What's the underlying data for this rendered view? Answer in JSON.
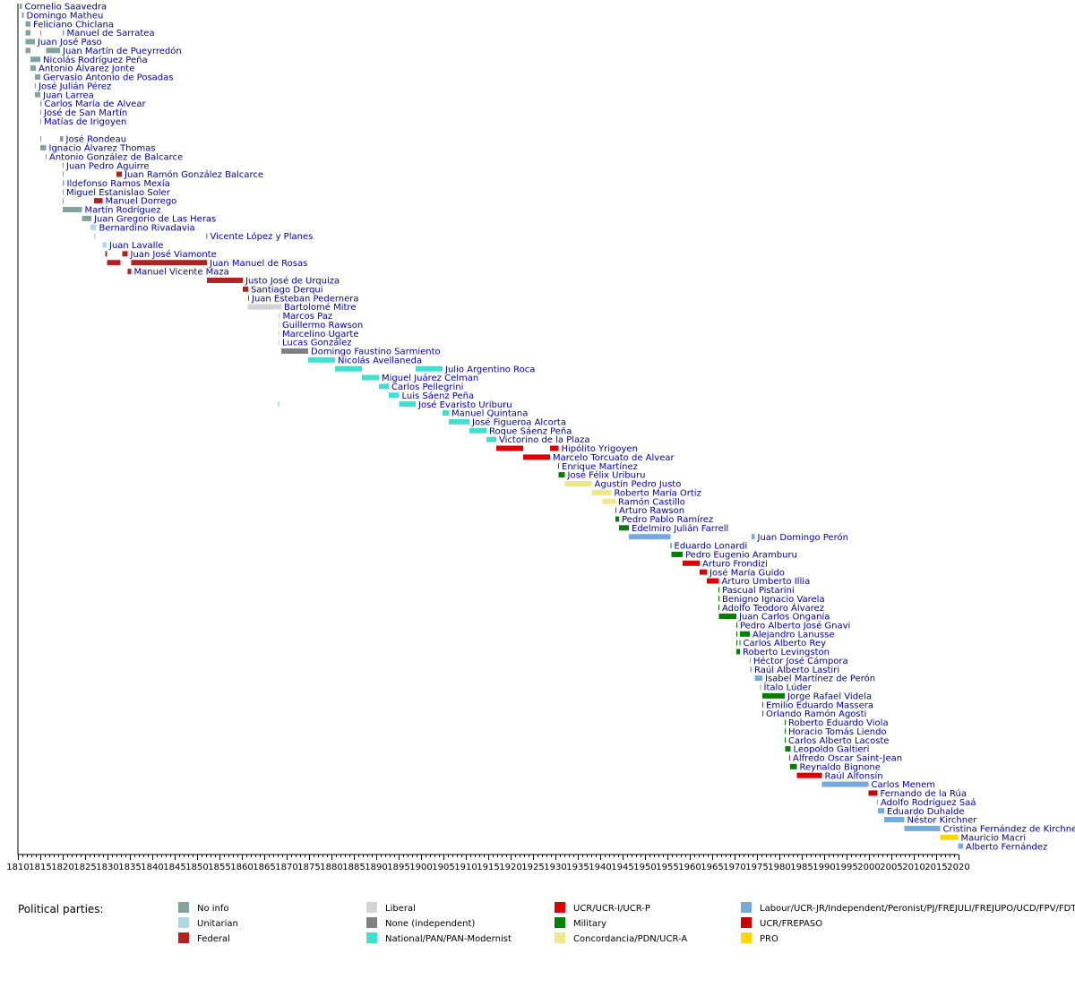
{
  "chart_data": {
    "type": "timeline",
    "title": "",
    "xlabel": "",
    "ylabel": "",
    "xlim": [
      1810,
      2020
    ],
    "xticks": [
      1810,
      1815,
      1820,
      1825,
      1830,
      1835,
      1840,
      1845,
      1850,
      1855,
      1860,
      1865,
      1870,
      1875,
      1880,
      1885,
      1890,
      1895,
      1900,
      1905,
      1910,
      1915,
      1920,
      1925,
      1930,
      1935,
      1940,
      1945,
      1950,
      1955,
      1960,
      1965,
      1970,
      1975,
      1980,
      1985,
      1990,
      1995,
      2000,
      2005,
      2010,
      2015,
      2020
    ],
    "legend_title": "Political parties:",
    "legend_placement": "bottom",
    "parties": [
      {
        "key": "noinfo",
        "label": "No info",
        "color": "#7fa3a0"
      },
      {
        "key": "unitarian",
        "label": "Unitarian",
        "color": "#add8e6"
      },
      {
        "key": "federal",
        "label": "Federal",
        "color": "#b22222"
      },
      {
        "key": "liberal",
        "label": "Liberal",
        "color": "#d3d3d3"
      },
      {
        "key": "independent",
        "label": "None (independent)",
        "color": "#808080"
      },
      {
        "key": "national",
        "label": "National/PAN/PAN-Modernist",
        "color": "#40e0d0"
      },
      {
        "key": "ucr",
        "label": "UCR/UCR-I/UCR-P",
        "color": "#dd0000"
      },
      {
        "key": "military",
        "label": "Military",
        "color": "#008000"
      },
      {
        "key": "concordancia",
        "label": "Concordancia/PDN/UCR-A",
        "color": "#f0e68c"
      },
      {
        "key": "labour",
        "label": "Labour/UCR-JR/Independent/Peronist/PJ/FREJULI/FREJUPO/UCD/FPV/FDT",
        "color": "#75aadb"
      },
      {
        "key": "frepaso",
        "label": "UCR/FREPASO",
        "color": "#cc0000"
      },
      {
        "key": "pro",
        "label": "PRO",
        "color": "#ffd700"
      }
    ],
    "rows": [
      {
        "name": "Cornelio Saavedra",
        "terms": [
          [
            1810.4,
            1810.9,
            "noinfo"
          ]
        ]
      },
      {
        "name": "Domingo Matheu",
        "terms": [
          [
            1810.9,
            1811.3,
            "noinfo"
          ]
        ]
      },
      {
        "name": "Feliciano Chiclana",
        "terms": [
          [
            1811.7,
            1812.8,
            "noinfo"
          ]
        ]
      },
      {
        "name": "Manuel de Sarratea",
        "terms": [
          [
            1811.7,
            1812.8,
            "noinfo"
          ],
          [
            1815.0,
            1815.2,
            "noinfo"
          ],
          [
            1820.0,
            1820.3,
            "noinfo"
          ]
        ]
      },
      {
        "name": "Juan José Paso",
        "terms": [
          [
            1811.7,
            1813.8,
            "noinfo"
          ]
        ]
      },
      {
        "name": "Juan Martín de Pueyrredón",
        "terms": [
          [
            1811.7,
            1812.8,
            "noinfo"
          ],
          [
            1816.3,
            1819.4,
            "noinfo"
          ]
        ]
      },
      {
        "name": "Nicolás Rodríguez Peña",
        "terms": [
          [
            1812.8,
            1815.0,
            "noinfo"
          ]
        ]
      },
      {
        "name": "Antonio Álvarez Jonte",
        "terms": [
          [
            1812.8,
            1814.0,
            "noinfo"
          ]
        ]
      },
      {
        "name": "Gervasio Antonio de Posadas",
        "terms": [
          [
            1813.8,
            1815.0,
            "noinfo"
          ]
        ]
      },
      {
        "name": "José Julián Pérez",
        "terms": [
          [
            1813.8,
            1814.0,
            "noinfo"
          ]
        ]
      },
      {
        "name": "Juan Larrea",
        "terms": [
          [
            1813.8,
            1815.0,
            "noinfo"
          ]
        ]
      },
      {
        "name": "Carlos María de Alvear",
        "terms": [
          [
            1815.0,
            1815.3,
            "noinfo"
          ]
        ]
      },
      {
        "name": "José de San Martín",
        "terms": [
          [
            1815.0,
            1815.2,
            "noinfo"
          ]
        ]
      },
      {
        "name": "Matías de Irigoyen",
        "terms": [
          [
            1815.0,
            1815.2,
            "noinfo"
          ]
        ]
      },
      {
        "name": "",
        "terms": []
      },
      {
        "name": "José Rondeau",
        "terms": [
          [
            1815.0,
            1815.2,
            "noinfo"
          ],
          [
            1819.4,
            1820.1,
            "noinfo"
          ]
        ]
      },
      {
        "name": "Ignacio Álvarez Thomas",
        "terms": [
          [
            1815.0,
            1816.3,
            "noinfo"
          ]
        ]
      },
      {
        "name": "Antonio González de Balcarce",
        "terms": [
          [
            1816.2,
            1816.4,
            "noinfo"
          ]
        ]
      },
      {
        "name": "Juan Pedro Aguirre",
        "terms": [
          [
            1820.0,
            1820.2,
            "noinfo"
          ]
        ]
      },
      {
        "name": "Juan Ramón González Balcarce",
        "terms": [
          [
            1820.0,
            1820.2,
            "noinfo"
          ],
          [
            1832.0,
            1833.2,
            "federal"
          ]
        ]
      },
      {
        "name": "Ildefonso Ramos Mexía",
        "terms": [
          [
            1820.0,
            1820.3,
            "noinfo"
          ]
        ]
      },
      {
        "name": "Miguel Estanislao Soler",
        "terms": [
          [
            1820.0,
            1820.2,
            "noinfo"
          ]
        ]
      },
      {
        "name": "Manuel Dorrego",
        "terms": [
          [
            1820.0,
            1820.2,
            "noinfo"
          ],
          [
            1827.0,
            1828.9,
            "federal"
          ]
        ]
      },
      {
        "name": "Martín Rodríguez",
        "terms": [
          [
            1820.0,
            1824.3,
            "noinfo"
          ]
        ]
      },
      {
        "name": "Juan Gregorio de Las Heras",
        "terms": [
          [
            1824.3,
            1826.4,
            "noinfo"
          ]
        ]
      },
      {
        "name": "Bernardino Rivadavia",
        "terms": [
          [
            1826.2,
            1827.5,
            "unitarian"
          ]
        ]
      },
      {
        "name": "Vicente López y Planes",
        "terms": [
          [
            1827.0,
            1827.3,
            "unitarian"
          ],
          [
            1852.0,
            1852.3,
            "noinfo"
          ]
        ]
      },
      {
        "name": "Juan Lavalle",
        "terms": [
          [
            1828.9,
            1829.8,
            "unitarian"
          ]
        ]
      },
      {
        "name": "Juan José Viamonte",
        "terms": [
          [
            1829.5,
            1829.9,
            "federal"
          ],
          [
            1833.3,
            1834.5,
            "federal"
          ]
        ]
      },
      {
        "name": "Juan Manuel de Rosas",
        "terms": [
          [
            1829.9,
            1832.9,
            "federal"
          ],
          [
            1835.3,
            1852.2,
            "federal"
          ]
        ]
      },
      {
        "name": "Manuel Vicente Maza",
        "terms": [
          [
            1834.5,
            1835.3,
            "federal"
          ]
        ]
      },
      {
        "name": "Justo José de Urquiza",
        "terms": [
          [
            1852.2,
            1860.2,
            "federal"
          ]
        ]
      },
      {
        "name": "Santiago Derqui",
        "terms": [
          [
            1860.2,
            1861.4,
            "federal"
          ]
        ]
      },
      {
        "name": "Juan Esteban Pedernera",
        "terms": [
          [
            1861.4,
            1861.6,
            "federal"
          ]
        ]
      },
      {
        "name": "Bartolomé Mitre",
        "terms": [
          [
            1861.3,
            1868.8,
            "liberal"
          ]
        ]
      },
      {
        "name": "Marcos Paz",
        "terms": [
          [
            1868.2,
            1868.5,
            "liberal"
          ]
        ]
      },
      {
        "name": "Guillermo Rawson",
        "terms": [
          [
            1868.2,
            1868.4,
            "liberal"
          ]
        ]
      },
      {
        "name": "Marcelino Ugarte",
        "terms": [
          [
            1868.2,
            1868.4,
            "liberal"
          ]
        ]
      },
      {
        "name": "Lucas González",
        "terms": [
          [
            1868.2,
            1868.4,
            "liberal"
          ]
        ]
      },
      {
        "name": "Domingo Faustino Sarmiento",
        "terms": [
          [
            1868.8,
            1874.8,
            "independent"
          ]
        ]
      },
      {
        "name": "Nicolás Avellaneda",
        "terms": [
          [
            1874.8,
            1880.8,
            "national"
          ]
        ]
      },
      {
        "name": "Julio Argentino Roca",
        "terms": [
          [
            1880.8,
            1886.8,
            "national"
          ],
          [
            1898.8,
            1904.8,
            "national"
          ]
        ]
      },
      {
        "name": "Miguel Juárez Celman",
        "terms": [
          [
            1886.8,
            1890.6,
            "national"
          ]
        ]
      },
      {
        "name": "Carlos Pellegrini",
        "terms": [
          [
            1890.6,
            1892.8,
            "national"
          ]
        ]
      },
      {
        "name": "Luis Sáenz Peña",
        "terms": [
          [
            1892.8,
            1895.1,
            "national"
          ]
        ]
      },
      {
        "name": "José Evaristo Uriburu",
        "terms": [
          [
            1868.1,
            1868.3,
            "national"
          ],
          [
            1895.1,
            1898.8,
            "national"
          ]
        ]
      },
      {
        "name": "Manuel Quintana",
        "terms": [
          [
            1904.8,
            1906.2,
            "national"
          ]
        ]
      },
      {
        "name": "José Figueroa Alcorta",
        "terms": [
          [
            1906.2,
            1910.8,
            "national"
          ]
        ]
      },
      {
        "name": "Roque Sáenz Peña",
        "terms": [
          [
            1910.8,
            1914.6,
            "national"
          ]
        ]
      },
      {
        "name": "Victorino de la Plaza",
        "terms": [
          [
            1914.6,
            1916.8,
            "national"
          ]
        ]
      },
      {
        "name": "Hipólito Yrigoyen",
        "terms": [
          [
            1916.8,
            1922.8,
            "ucr"
          ],
          [
            1928.8,
            1930.7,
            "ucr"
          ]
        ]
      },
      {
        "name": "Marcelo Torcuato de Alvear",
        "terms": [
          [
            1922.8,
            1928.8,
            "ucr"
          ]
        ]
      },
      {
        "name": "Enrique Martínez",
        "terms": [
          [
            1930.6,
            1930.8,
            "ucr"
          ]
        ]
      },
      {
        "name": "José Félix Uriburu",
        "terms": [
          [
            1930.7,
            1932.1,
            "military"
          ]
        ]
      },
      {
        "name": "Agustín Pedro Justo",
        "terms": [
          [
            1932.1,
            1938.1,
            "concordancia"
          ]
        ]
      },
      {
        "name": "Roberto María Ortiz",
        "terms": [
          [
            1938.1,
            1942.5,
            "concordancia"
          ]
        ]
      },
      {
        "name": "Ramón Castillo",
        "terms": [
          [
            1940.5,
            1943.4,
            "concordancia"
          ]
        ]
      },
      {
        "name": "Arturo Rawson",
        "terms": [
          [
            1943.4,
            1943.6,
            "military"
          ]
        ]
      },
      {
        "name": "Pedro Pablo Ramírez",
        "terms": [
          [
            1943.4,
            1944.2,
            "military"
          ]
        ]
      },
      {
        "name": "Edelmiro Julián Farrell",
        "terms": [
          [
            1944.2,
            1946.4,
            "military"
          ]
        ]
      },
      {
        "name": "Juan Domingo Perón",
        "terms": [
          [
            1946.4,
            1955.7,
            "labour"
          ],
          [
            1973.8,
            1974.5,
            "labour"
          ]
        ]
      },
      {
        "name": "Eduardo Lonardi",
        "terms": [
          [
            1955.7,
            1955.9,
            "military"
          ]
        ]
      },
      {
        "name": "Pedro Eugenio Aramburu",
        "terms": [
          [
            1955.9,
            1958.4,
            "military"
          ]
        ]
      },
      {
        "name": "Arturo Frondizi",
        "terms": [
          [
            1958.4,
            1962.2,
            "ucr"
          ]
        ]
      },
      {
        "name": "José María Guido",
        "terms": [
          [
            1962.2,
            1963.8,
            "ucr"
          ]
        ]
      },
      {
        "name": "Arturo Umberto Illia",
        "terms": [
          [
            1963.8,
            1966.5,
            "ucr"
          ]
        ]
      },
      {
        "name": "Pascual Pistarini",
        "terms": [
          [
            1966.4,
            1966.6,
            "military"
          ]
        ]
      },
      {
        "name": "Benigno Ignacio Varela",
        "terms": [
          [
            1966.4,
            1966.6,
            "military"
          ]
        ]
      },
      {
        "name": "Adolfo Teodoro Álvarez",
        "terms": [
          [
            1966.4,
            1966.6,
            "military"
          ]
        ]
      },
      {
        "name": "Juan Carlos Onganía",
        "terms": [
          [
            1966.5,
            1970.4,
            "military"
          ]
        ]
      },
      {
        "name": "Pedro Alberto José Gnavi",
        "terms": [
          [
            1970.4,
            1970.6,
            "military"
          ]
        ]
      },
      {
        "name": "Alejandro Lanusse",
        "terms": [
          [
            1970.4,
            1970.6,
            "military"
          ],
          [
            1971.2,
            1973.4,
            "military"
          ]
        ]
      },
      {
        "name": "Carlos Alberto Rey",
        "terms": [
          [
            1970.4,
            1970.6,
            "military"
          ],
          [
            1971.1,
            1971.3,
            "military"
          ]
        ]
      },
      {
        "name": "Roberto Levingston",
        "terms": [
          [
            1970.4,
            1971.2,
            "military"
          ]
        ]
      },
      {
        "name": "Héctor José Cámpora",
        "terms": [
          [
            1973.4,
            1973.6,
            "labour"
          ]
        ]
      },
      {
        "name": "Raúl Alberto Lastiri",
        "terms": [
          [
            1973.5,
            1973.8,
            "labour"
          ]
        ]
      },
      {
        "name": "Isabel Martínez de Perón",
        "terms": [
          [
            1974.5,
            1976.2,
            "labour"
          ]
        ]
      },
      {
        "name": "Ítalo Lúder",
        "terms": [
          [
            1975.7,
            1975.9,
            "labour"
          ]
        ]
      },
      {
        "name": "Jorge Rafael Videla",
        "terms": [
          [
            1976.2,
            1981.2,
            "military"
          ]
        ]
      },
      {
        "name": "Emilio Eduardo Massera",
        "terms": [
          [
            1976.2,
            1976.4,
            "military"
          ]
        ]
      },
      {
        "name": "Orlando Ramón Agosti",
        "terms": [
          [
            1976.2,
            1976.4,
            "military"
          ]
        ]
      },
      {
        "name": "Roberto Eduardo Viola",
        "terms": [
          [
            1981.2,
            1981.4,
            "military"
          ]
        ]
      },
      {
        "name": "Horacio Tomás Liendo",
        "terms": [
          [
            1981.2,
            1981.4,
            "military"
          ]
        ]
      },
      {
        "name": "Carlos Alberto Lacoste",
        "terms": [
          [
            1981.2,
            1981.4,
            "military"
          ]
        ]
      },
      {
        "name": "Leopoldo Galtieri",
        "terms": [
          [
            1981.3,
            1982.5,
            "military"
          ]
        ]
      },
      {
        "name": "Alfredo Oscar Saint-Jean",
        "terms": [
          [
            1982.2,
            1982.4,
            "military"
          ]
        ]
      },
      {
        "name": "Reynaldo Bignone",
        "terms": [
          [
            1982.4,
            1983.9,
            "military"
          ]
        ]
      },
      {
        "name": "Raúl Alfonsín",
        "terms": [
          [
            1983.9,
            1989.5,
            "ucr"
          ]
        ]
      },
      {
        "name": "Carlos Menem",
        "terms": [
          [
            1989.5,
            1999.9,
            "labour"
          ]
        ]
      },
      {
        "name": "Fernando de la Rúa",
        "terms": [
          [
            1999.9,
            2001.9,
            "frepaso"
          ]
        ]
      },
      {
        "name": "Adolfo Rodríguez Saá",
        "terms": [
          [
            2001.8,
            2002.0,
            "labour"
          ]
        ]
      },
      {
        "name": "Eduardo Duhalde",
        "terms": [
          [
            2002.0,
            2003.4,
            "labour"
          ]
        ]
      },
      {
        "name": "Néstor Kirchner",
        "terms": [
          [
            2003.4,
            2007.9,
            "labour"
          ]
        ]
      },
      {
        "name": "Cristina Fernández de Kirchner",
        "terms": [
          [
            2007.9,
            2015.9,
            "labour"
          ]
        ]
      },
      {
        "name": "Mauricio Macri",
        "terms": [
          [
            2015.9,
            2019.9,
            "pro"
          ]
        ]
      },
      {
        "name": "Alberto Fernández",
        "terms": [
          [
            2019.9,
            2021.0,
            "labour"
          ]
        ]
      }
    ]
  }
}
